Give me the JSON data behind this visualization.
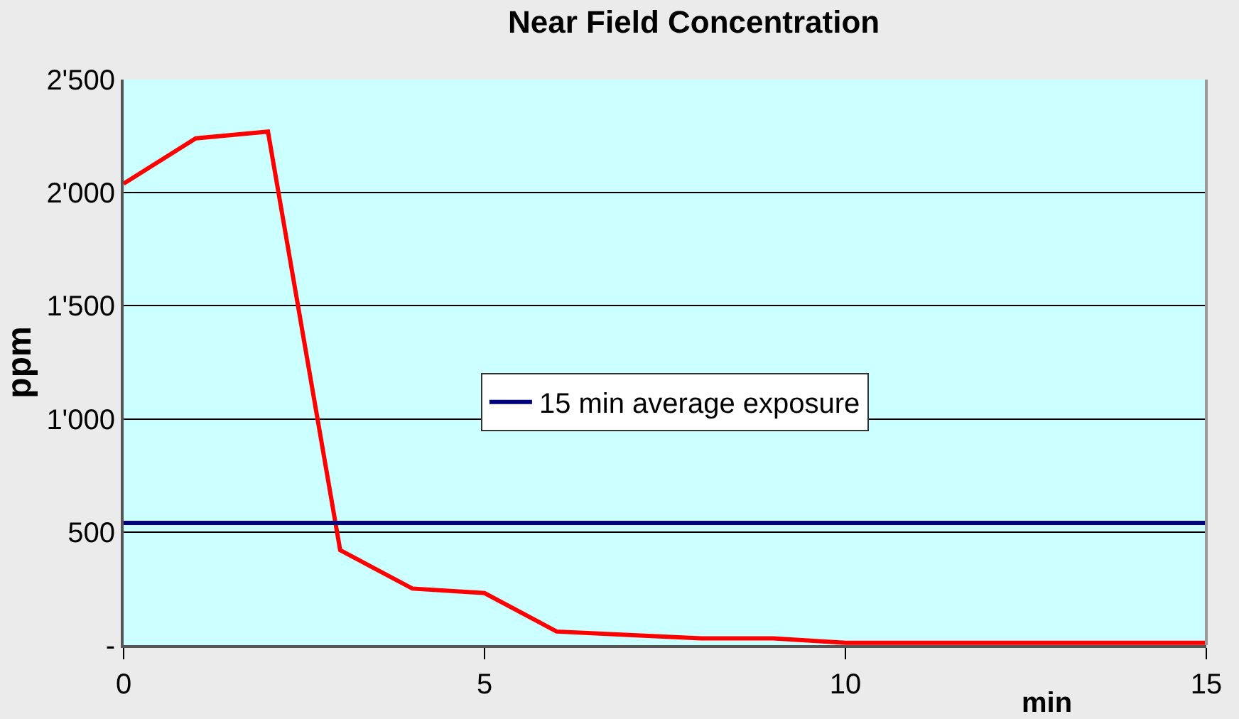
{
  "chart_data": {
    "type": "line",
    "title": "Near Field Concentration",
    "xlabel": "min",
    "ylabel": "ppm",
    "x": [
      0,
      1,
      2,
      3,
      4,
      5,
      6,
      7,
      8,
      9,
      10,
      11,
      12,
      13,
      14,
      15
    ],
    "series": [
      {
        "color": "#ff0000",
        "values": [
          2040,
          2240,
          2270,
          420,
          250,
          230,
          60,
          45,
          30,
          30,
          10,
          10,
          10,
          10,
          10,
          10
        ]
      },
      {
        "name": "15 min average exposure",
        "color": "#000080",
        "x": [
          0,
          15
        ],
        "values": [
          540,
          540
        ]
      }
    ],
    "xlim": [
      0,
      15
    ],
    "xticks": [
      0,
      5,
      10,
      15
    ],
    "ylim": [
      0,
      2500
    ],
    "yticks": [
      {
        "value": 0,
        "label": "-"
      },
      {
        "value": 500,
        "label": "500"
      },
      {
        "value": 1000,
        "label": "1'000"
      },
      {
        "value": 1500,
        "label": "1'500"
      },
      {
        "value": 2000,
        "label": "2'000"
      },
      {
        "value": 2500,
        "label": "2'500"
      }
    ],
    "grid": "y",
    "legend": "right",
    "marker": "none",
    "line_style": "solid"
  }
}
